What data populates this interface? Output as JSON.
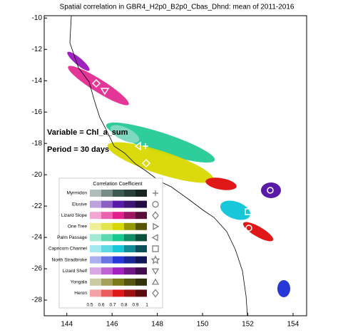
{
  "chart_data": {
    "type": "map",
    "title": "Spatial correlation in GBR4_H2p0_B2p0_Cbas_Dhnd: mean of 2011-2016",
    "xlim": [
      143,
      154.6
    ],
    "ylim": [
      -29,
      -9.85
    ],
    "xticks": [
      144,
      146,
      148,
      150,
      152,
      154
    ],
    "yticks": [
      -10,
      -12,
      -14,
      -16,
      -18,
      -20,
      -22,
      -24,
      -26,
      -28
    ],
    "annotations": [
      "Variable = Chl_a_sum",
      "Period = 30 days"
    ],
    "legend": {
      "title": "Correlation Coefficient",
      "colorbar_lim": [
        0.5,
        1
      ],
      "colorbar_ticks": [
        0.5,
        0.6,
        0.7,
        0.8,
        0.9,
        1
      ],
      "entries": [
        {
          "name": "Myrmidon",
          "color": "#3b5a52",
          "marker": "plus"
        },
        {
          "name": "Elusive",
          "color": "#5a1aa8",
          "marker": "circle"
        },
        {
          "name": "Lizard Slope",
          "color": "#e0208c",
          "marker": "diamond"
        },
        {
          "name": "One Tree",
          "color": "#d8d800",
          "marker": "triangle-right"
        },
        {
          "name": "Palm Passage",
          "color": "#18c890",
          "marker": "triangle-left"
        },
        {
          "name": "Capricorn Channel",
          "color": "#18c8d8",
          "marker": "square"
        },
        {
          "name": "North Stradbroke",
          "color": "#2838d8",
          "marker": "star"
        },
        {
          "name": "Lizard Shelf",
          "color": "#a020c0",
          "marker": "triangle-down"
        },
        {
          "name": "Yongala",
          "color": "#7a7a18",
          "marker": "triangle-up"
        },
        {
          "name": "Heron",
          "color": "#e01818",
          "marker": "diamond"
        }
      ]
    }
  }
}
